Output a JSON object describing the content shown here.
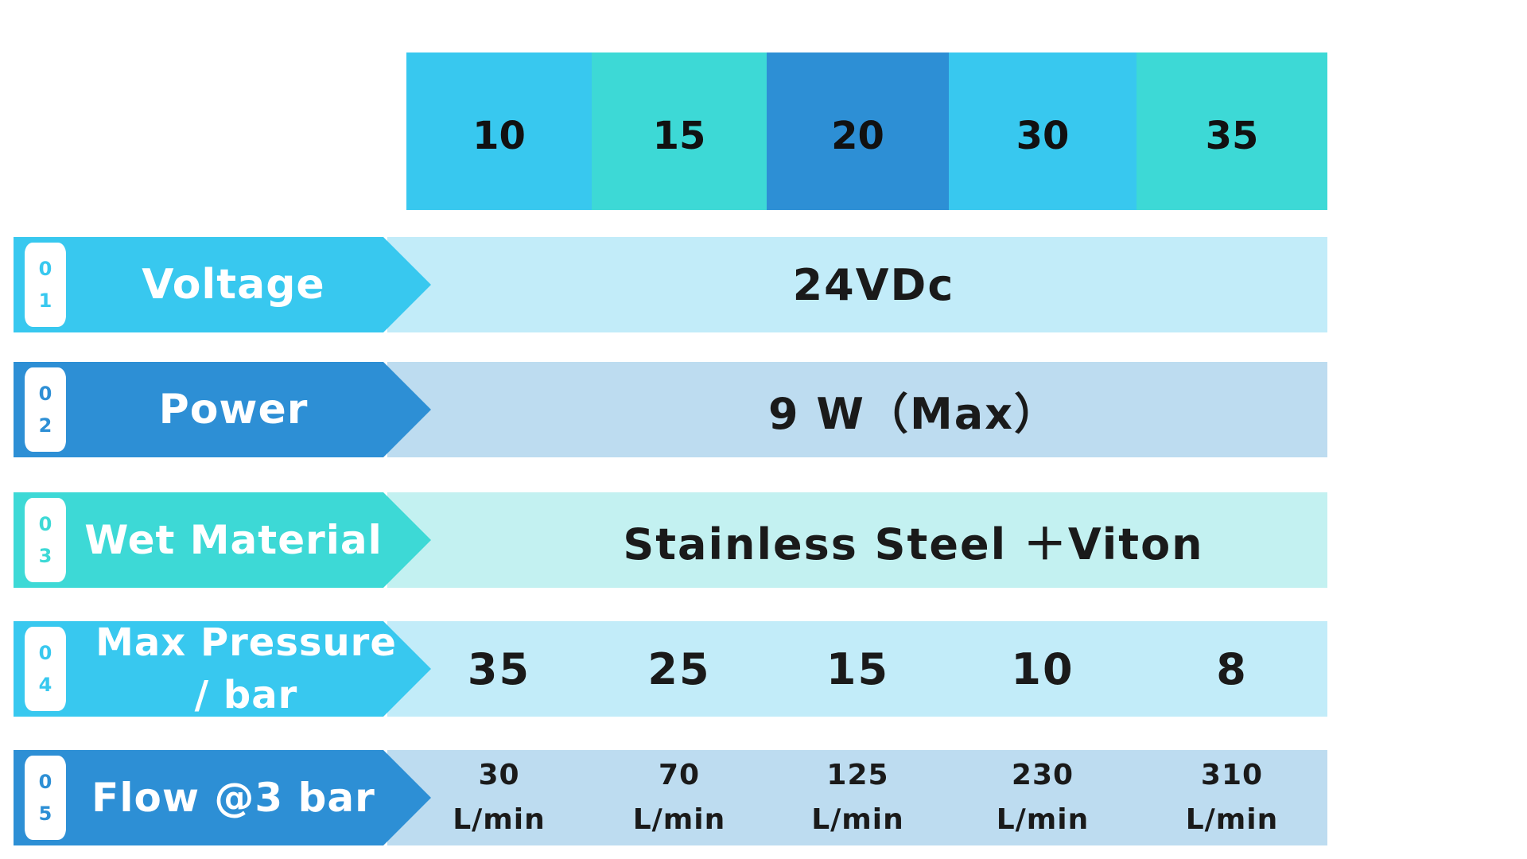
{
  "colors": {
    "cyan": "#38c8ef",
    "teal": "#3dd9d6",
    "blue": "#2d8fd5",
    "band_cyan": "#c2ecf9",
    "band_blue": "#bddcf0",
    "band_teal": "#c3f1f1"
  },
  "header": {
    "models": [
      {
        "label": "10",
        "color": "#38c8ef"
      },
      {
        "label": "15",
        "color": "#3dd9d6"
      },
      {
        "label": "20",
        "color": "#2d8fd5"
      },
      {
        "label": "30",
        "color": "#38c8ef"
      },
      {
        "label": "35",
        "color": "#3dd9d6"
      }
    ]
  },
  "rows": [
    {
      "num1": "0",
      "num2": "1",
      "label": "Voltage",
      "value": "24VDc"
    },
    {
      "num1": "0",
      "num2": "2",
      "label": "Power",
      "value": "9 W（Max）"
    },
    {
      "num1": "0",
      "num2": "3",
      "label": "Wet Material",
      "value": "Stainless Steel ＋Viton"
    },
    {
      "num1": "0",
      "num2": "4",
      "label_line1": "Max Pressure",
      "label_line2": "/ bar",
      "values": [
        "35",
        "25",
        "15",
        "10",
        "8"
      ]
    },
    {
      "num1": "0",
      "num2": "5",
      "label": "Flow @3 bar",
      "values": [
        {
          "amount": "30",
          "unit": "L/min"
        },
        {
          "amount": "70",
          "unit": "L/min"
        },
        {
          "amount": "125",
          "unit": "L/min"
        },
        {
          "amount": "230",
          "unit": "L/min"
        },
        {
          "amount": "310",
          "unit": "L/min"
        }
      ]
    }
  ]
}
